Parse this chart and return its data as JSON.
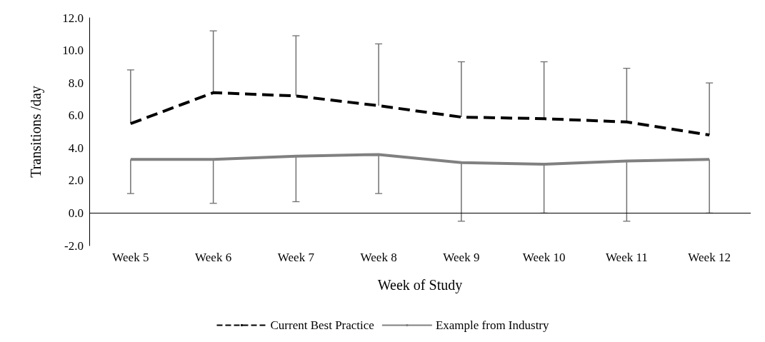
{
  "chart_data": {
    "type": "line",
    "xlabel": "Week of Study",
    "ylabel": "Transitions /day",
    "categories": [
      "Week 5",
      "Week 6",
      "Week 7",
      "Week 8",
      "Week 9",
      "Week 10",
      "Week 11",
      "Week 12"
    ],
    "series": [
      {
        "name": "Current Best Practice",
        "color": "#000000",
        "line_style": "dashed",
        "values": [
          5.5,
          7.4,
          7.2,
          6.6,
          5.9,
          5.8,
          5.6,
          4.8
        ],
        "errors": [
          [
            5.5,
            8.8
          ],
          [
            7.4,
            11.2
          ],
          [
            7.2,
            10.9
          ],
          [
            6.6,
            10.4
          ],
          [
            5.9,
            9.3
          ],
          [
            5.8,
            9.3
          ],
          [
            5.6,
            8.9
          ],
          [
            4.8,
            8.0
          ]
        ]
      },
      {
        "name": "Example from Industry",
        "color": "#808080",
        "line_style": "solid",
        "values": [
          3.3,
          3.3,
          3.5,
          3.6,
          3.1,
          3.0,
          3.2,
          3.3
        ],
        "errors": [
          [
            1.2,
            3.3
          ],
          [
            0.6,
            3.3
          ],
          [
            0.7,
            3.5
          ],
          [
            1.2,
            3.6
          ],
          [
            -0.5,
            3.1
          ],
          [
            0.0,
            3.0
          ],
          [
            -0.5,
            3.2
          ],
          [
            0.0,
            3.3
          ]
        ]
      }
    ],
    "ylim": [
      -2,
      12
    ],
    "yticks": [
      {
        "value": -2,
        "label": "-2.0"
      },
      {
        "value": 0,
        "label": "0.0"
      },
      {
        "value": 2,
        "label": "2.0"
      },
      {
        "value": 4,
        "label": "4.0"
      },
      {
        "value": 6,
        "label": "6.0"
      },
      {
        "value": 8,
        "label": "8.0"
      },
      {
        "value": 10,
        "label": "10.0"
      },
      {
        "value": 12,
        "label": "12.0"
      }
    ],
    "ref_lines": [
      {
        "axis": "y",
        "value": 0,
        "color": "#000000",
        "line_style": "solid"
      }
    ],
    "grid": false,
    "legend": "bottom",
    "marker": "none"
  }
}
